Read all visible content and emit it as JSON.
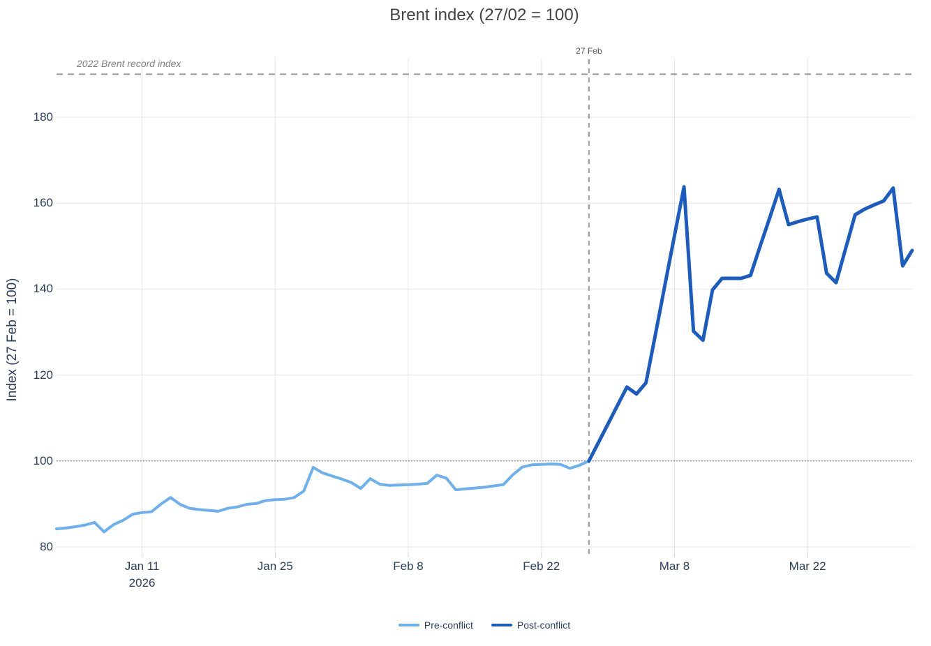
{
  "page": {
    "title": "Brent index (27/02 = 100)"
  },
  "y_axis": {
    "title": "Index (27 Feb = 100)",
    "tick_values": [
      80,
      100,
      120,
      140,
      160,
      180
    ]
  },
  "x_axis": {
    "ticks": [
      {
        "label": "Jan 11",
        "sublabel": "2026",
        "date": "2026-01-11"
      },
      {
        "label": "Jan 25",
        "sublabel": "",
        "date": "2026-01-25"
      },
      {
        "label": "Feb 8",
        "sublabel": "",
        "date": "2026-02-08"
      },
      {
        "label": "Feb 22",
        "sublabel": "",
        "date": "2026-02-22"
      },
      {
        "label": "Mar 8",
        "sublabel": "",
        "date": "2026-03-08"
      },
      {
        "label": "Mar 22",
        "sublabel": "",
        "date": "2026-03-22"
      }
    ]
  },
  "annotations": {
    "record_label": "2022 Brent record index",
    "event_label": "27 Feb"
  },
  "legend": {
    "items": [
      {
        "label": "Pre-conflict",
        "color": "#6CB0F1"
      },
      {
        "label": "Post-conflict",
        "color": "#1A5CC3"
      }
    ]
  },
  "colors": {
    "pre_line": "#6CB0F1",
    "post_line": "#1A5CC3",
    "grid": "#e6e6e6",
    "tick_stub": "#cfcfcf",
    "reference_dash": "#9a9a9a",
    "baseline_dot": "#444444",
    "title_text": "#444444",
    "axis_text": "#2a3f5f"
  },
  "chart_data": {
    "type": "line",
    "title": "Brent index (27/02 = 100)",
    "xlabel": "",
    "ylabel": "Index (27 Feb = 100)",
    "ylim": [
      78.5,
      193.5
    ],
    "x_range": [
      "2026-01-02",
      "2026-04-02"
    ],
    "grid": true,
    "legend_position": "bottom",
    "reference_lines": [
      {
        "label": "2022 Brent record index",
        "y": 190,
        "style": "dashed"
      },
      {
        "label": "27 Feb",
        "x": "2026-02-27",
        "style": "dashed-vertical"
      },
      {
        "label": "",
        "y": 100,
        "style": "dotted"
      }
    ],
    "series": [
      {
        "name": "Pre-conflict",
        "color": "#6CB0F1",
        "start_date": "2026-01-02",
        "end_date": "2026-02-27",
        "values": [
          84.2,
          84.4,
          84.7,
          85.1,
          85.7,
          83.5,
          85.2,
          86.2,
          87.6,
          88.0,
          88.2,
          90.0,
          91.5,
          89.9,
          89.0,
          88.7,
          88.5,
          88.3,
          89.0,
          89.3,
          89.9,
          90.1,
          90.8,
          91.0,
          91.1,
          91.5,
          93.0,
          98.5,
          97.2,
          96.5,
          95.8,
          95.0,
          93.6,
          95.9,
          94.6,
          94.3,
          94.4,
          94.5,
          94.6,
          94.8,
          96.7,
          96.0,
          93.3,
          93.5,
          93.7,
          93.9,
          94.2,
          94.5,
          96.8,
          98.6,
          99.1,
          99.2,
          99.3,
          99.2,
          98.3,
          99.0,
          100.0
        ]
      },
      {
        "name": "Post-conflict",
        "color": "#1A5CC3",
        "start_date": "2026-02-27",
        "end_date": "2026-04-02",
        "values": [
          100.0,
          104.3,
          108.6,
          112.9,
          117.2,
          115.6,
          118.2,
          129.5,
          141.0,
          152.4,
          163.8,
          130.2,
          128.1,
          139.8,
          142.5,
          142.5,
          142.5,
          143.2,
          149.9,
          156.5,
          163.2,
          155.0,
          155.7,
          156.3,
          156.8,
          143.7,
          141.5,
          149.4,
          157.3,
          158.6,
          159.6,
          160.5,
          163.5,
          145.4,
          149.0
        ]
      }
    ]
  }
}
